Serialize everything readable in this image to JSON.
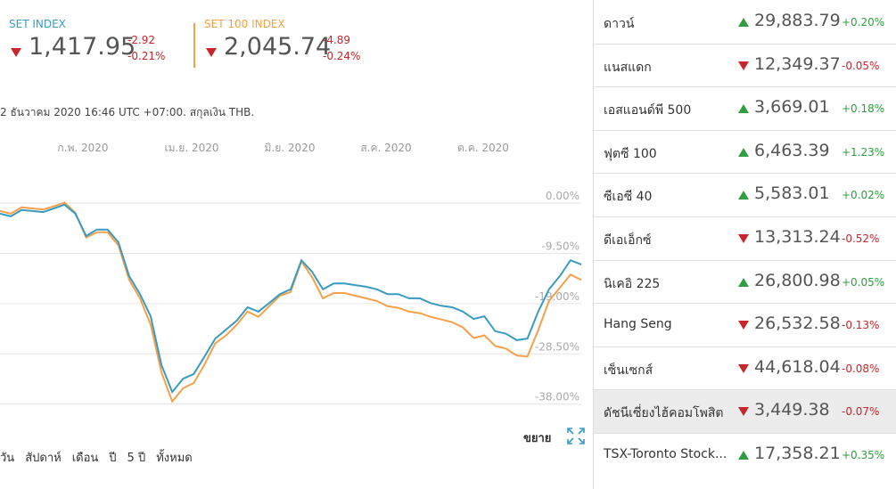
{
  "header": [
    {
      "value": "1,417.95",
      "change": "-2.92",
      "change_pct": "-0.21%",
      "direction": "down"
    },
    {
      "value": "2,045.74",
      "change": "-4.89",
      "change_pct": "-0.24%",
      "direction": "down"
    }
  ],
  "timestamp": "2 ธันวาคม 2020 16:46 UTC +07:00. สกุลเงิน THB.",
  "chart_data": {
    "type": "line",
    "xtick_labels": [
      "ก.พ. 2020",
      "เม.ย. 2020",
      "มิ.ย. 2020",
      "ส.ค. 2020",
      "ต.ค. 2020"
    ],
    "ylim": [
      -40,
      6
    ],
    "yticks": [
      {
        "value": 0,
        "label": "0.00%"
      },
      {
        "value": -9.5,
        "label": "-9.50%"
      },
      {
        "value": -19,
        "label": "-19.00%"
      },
      {
        "value": -28.5,
        "label": "-28.50%"
      },
      {
        "value": -38,
        "label": "-38.00%"
      }
    ],
    "grid": true,
    "series": [
      {
        "name": "SET INDEX",
        "color": "#3a9bc0",
        "values": [
          -2.0,
          -2.5,
          -1.3,
          -1.5,
          -1.7,
          -1.0,
          -0.3,
          -2.0,
          -6.2,
          -5.0,
          -5.0,
          -7.4,
          -13.8,
          -17.2,
          -21.4,
          -30.6,
          -35.7,
          -33.2,
          -32.3,
          -29.0,
          -25.6,
          -23.9,
          -22.2,
          -19.7,
          -20.5,
          -18.9,
          -17.2,
          -16.3,
          -10.8,
          -13.0,
          -16.3,
          -15.2,
          -15.2,
          -15.5,
          -15.8,
          -16.3,
          -17.2,
          -17.2,
          -18.0,
          -18.0,
          -18.9,
          -19.4,
          -19.7,
          -20.5,
          -21.9,
          -21.4,
          -24.2,
          -24.7,
          -25.9,
          -25.6,
          -20.5,
          -16.3,
          -13.8,
          -10.8,
          -11.6
        ]
      },
      {
        "name": "SET 100 INDEX",
        "color": "#f5a04a",
        "values": [
          -1.5,
          -2.0,
          -0.8,
          -1.0,
          -1.2,
          -0.6,
          0.1,
          -1.8,
          -6.5,
          -5.5,
          -5.5,
          -8.0,
          -14.5,
          -18.0,
          -23.0,
          -32.0,
          -37.5,
          -35.0,
          -34.0,
          -30.5,
          -26.5,
          -25.0,
          -23.0,
          -20.5,
          -21.5,
          -19.5,
          -17.5,
          -16.8,
          -11.0,
          -14.0,
          -18.0,
          -17.0,
          -17.0,
          -17.5,
          -18.0,
          -18.5,
          -19.5,
          -19.8,
          -20.5,
          -20.8,
          -21.5,
          -22.0,
          -22.5,
          -23.5,
          -25.5,
          -25.0,
          -27.0,
          -27.5,
          -28.8,
          -29.0,
          -24.0,
          -18.5,
          -16.0,
          -13.5,
          -14.5
        ]
      }
    ]
  },
  "ranges": [
    "วัน",
    "สัปดาห์",
    "เดือน",
    "ปี",
    "5 ปี",
    "ทั้งหมด"
  ],
  "expand": "ขยาย",
  "markets": {
    "highlighted": 9,
    "rows": [
      {
        "name": "ดาวน์",
        "value": "29,883.79",
        "change": "+0.20%",
        "direction": "up"
      },
      {
        "name": "แนสแดก",
        "value": "12,349.37",
        "change": "-0.05%",
        "direction": "down"
      },
      {
        "name": "เอสแอนด์พี 500",
        "value": "3,669.01",
        "change": "+0.18%",
        "direction": "up"
      },
      {
        "name": "ฟุตซี 100",
        "value": "6,463.39",
        "change": "+1.23%",
        "direction": "up"
      },
      {
        "name": "ซีเอซี 40",
        "value": "5,583.01",
        "change": "+0.02%",
        "direction": "up"
      },
      {
        "name": "ดีเอเอ็กซ์",
        "value": "13,313.24",
        "change": "-0.52%",
        "direction": "down"
      },
      {
        "name": "นิเคอิ 225",
        "value": "26,800.98",
        "change": "+0.05%",
        "direction": "up"
      },
      {
        "name": "Hang Seng",
        "value": "26,532.58",
        "change": "-0.13%",
        "direction": "down"
      },
      {
        "name": "เซ็นเซกส์",
        "value": "44,618.04",
        "change": "-0.08%",
        "direction": "down"
      },
      {
        "name": "ดัชนีเซี่ยงไฮ้คอมโพสิต",
        "value": "3,449.38",
        "change": "-0.07%",
        "direction": "down"
      },
      {
        "name": "TSX-Toronto Stock...",
        "value": "17,358.21",
        "change": "+0.35%",
        "direction": "up"
      }
    ]
  }
}
